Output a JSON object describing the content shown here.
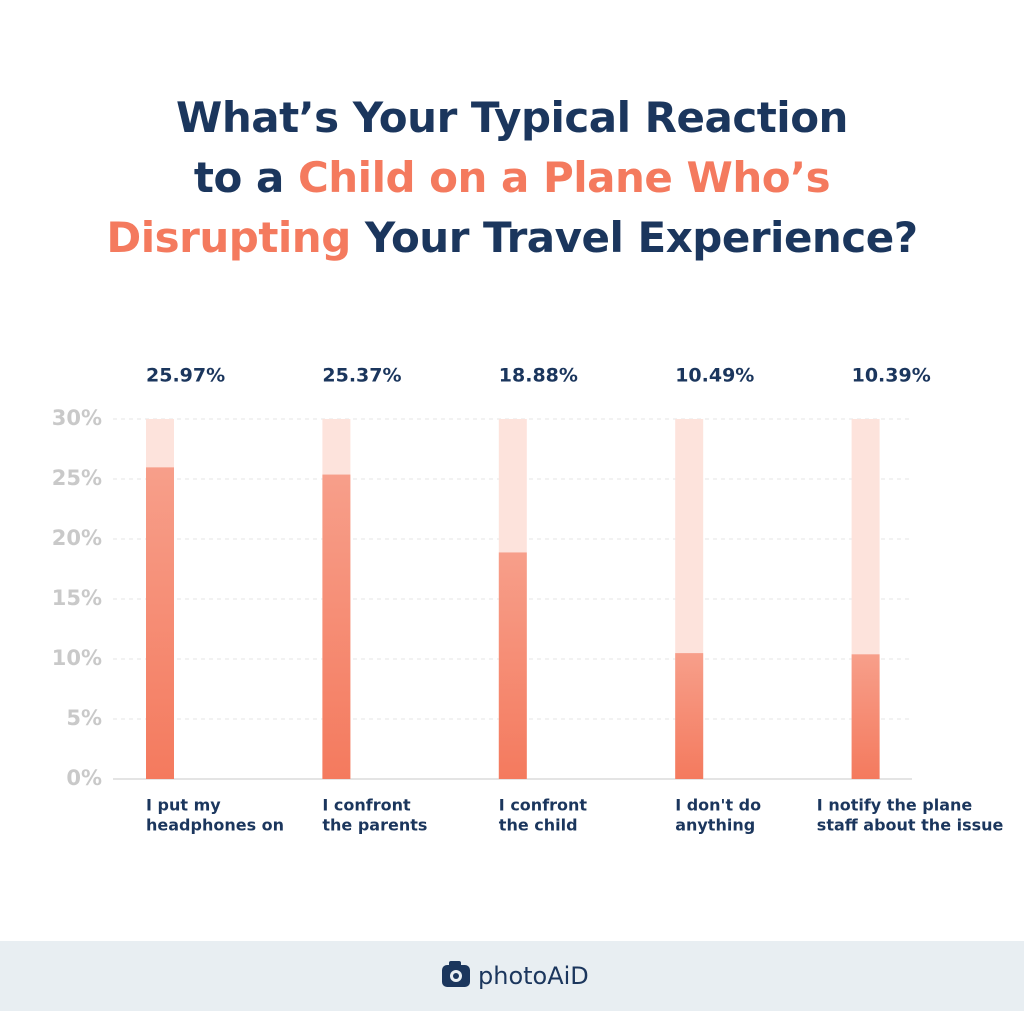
{
  "chart_data": {
    "type": "bar",
    "title_lines": [
      [
        {
          "text": "What’s Your Typical Reaction",
          "color": "#1b365d"
        }
      ],
      [
        {
          "text": "to a",
          "color": "#1b365d"
        },
        {
          "text": "Child on a Plane Who’s",
          "color": "#f47a5e"
        }
      ],
      [
        {
          "text": "Disrupting",
          "color": "#f47a5e"
        },
        {
          "text": "Your Travel Experience?",
          "color": "#1b365d"
        }
      ]
    ],
    "categories": [
      [
        "I put my",
        "headphones on"
      ],
      [
        "I confront",
        "the parents"
      ],
      [
        "I confront",
        "the child"
      ],
      [
        "I don't do",
        "anything"
      ],
      [
        "I notify the plane",
        "staff about the issue"
      ]
    ],
    "values": [
      25.97,
      25.37,
      18.88,
      10.49,
      10.39
    ],
    "value_labels": [
      "25.97%",
      "25.37%",
      "18.88%",
      "10.49%",
      "10.39%"
    ],
    "color": "#f47a5e",
    "track_color": "#fde3dc",
    "ylim": [
      0,
      30
    ],
    "yticks": [
      {
        "value": 0,
        "label": "0%"
      },
      {
        "value": 5,
        "label": "5%"
      },
      {
        "value": 10,
        "label": "10%"
      },
      {
        "value": 15,
        "label": "15%"
      },
      {
        "value": 20,
        "label": "20%"
      },
      {
        "value": 25,
        "label": "25%"
      },
      {
        "value": 30,
        "label": "30%"
      }
    ],
    "grid": true
  },
  "footer": {
    "brand": "photoAiD"
  }
}
